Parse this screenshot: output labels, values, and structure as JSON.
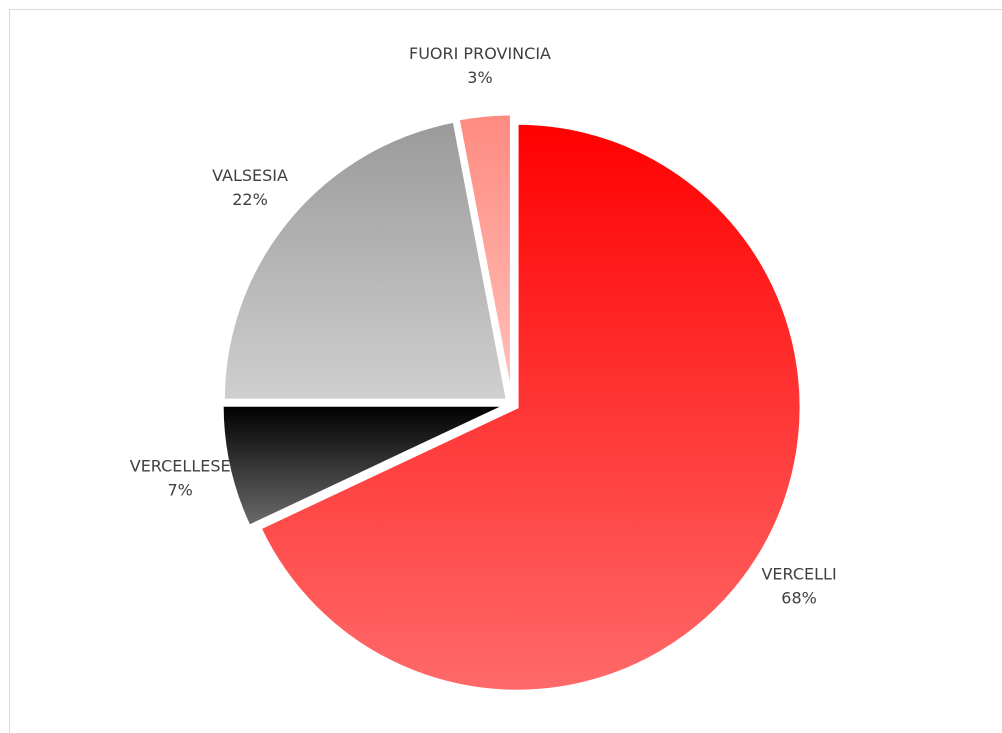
{
  "chart_data": {
    "type": "pie",
    "categories": [
      "VERCELLI",
      "VERCELLESE",
      "VALSESIA",
      "FUORI PROVINCIA"
    ],
    "values": [
      68,
      7,
      22,
      3
    ],
    "value_labels": [
      "68%",
      "7%",
      "22%",
      "3%"
    ],
    "colors": [
      [
        "#ff0000",
        "#ff6a6a"
      ],
      [
        "#000000",
        "#6b6b6b"
      ],
      [
        "#9a9a9a",
        "#cfcfcf"
      ],
      [
        "#ff8a80",
        "#ffc2bb"
      ]
    ]
  }
}
